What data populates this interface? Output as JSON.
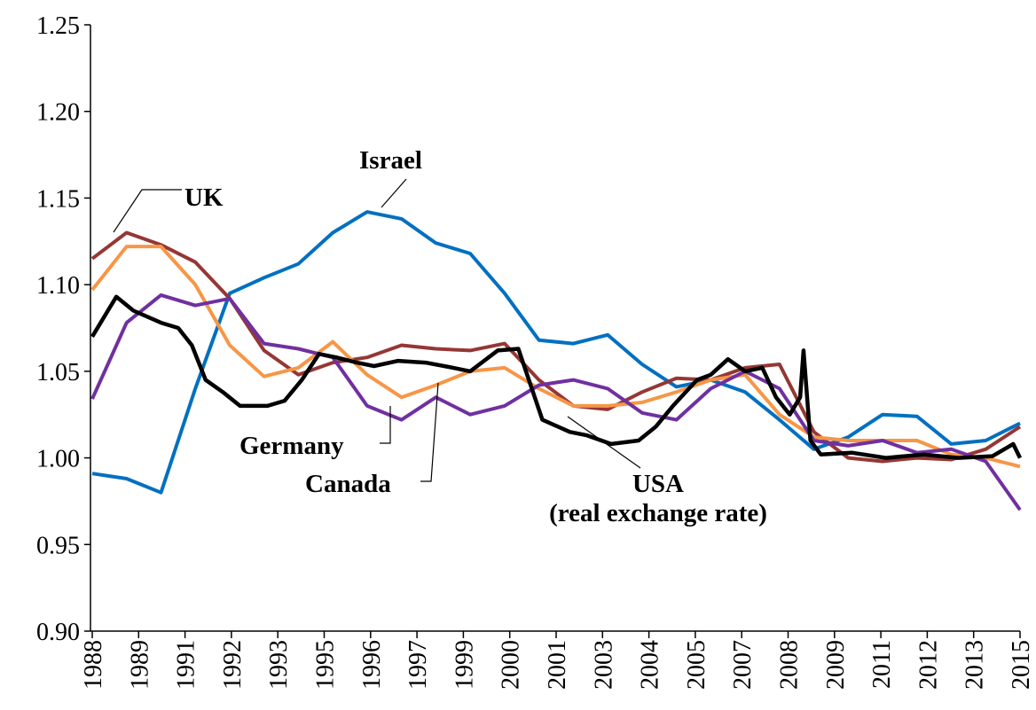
{
  "chart_data": {
    "type": "line",
    "annotations": [
      "Israel",
      "UK",
      "Germany",
      "Canada",
      "USA",
      "(real exchange rate)"
    ],
    "xlim": [
      1988,
      2015
    ],
    "xticks": [
      {
        "value": 1988,
        "label": "1988"
      },
      {
        "value": 1989.35,
        "label": "1989"
      },
      {
        "value": 1990.7,
        "label": "1991"
      },
      {
        "value": 1992.05,
        "label": "1992"
      },
      {
        "value": 1993.4,
        "label": "1993"
      },
      {
        "value": 1994.75,
        "label": "1995"
      },
      {
        "value": 1996.1,
        "label": "1996"
      },
      {
        "value": 1997.45,
        "label": "1997"
      },
      {
        "value": 1998.8,
        "label": "1999"
      },
      {
        "value": 2000.15,
        "label": "2000"
      },
      {
        "value": 2001.5,
        "label": "2001"
      },
      {
        "value": 2002.85,
        "label": "2003"
      },
      {
        "value": 2004.2,
        "label": "2004"
      },
      {
        "value": 2005.55,
        "label": "2005"
      },
      {
        "value": 2006.9,
        "label": "2007"
      },
      {
        "value": 2008.25,
        "label": "2008"
      },
      {
        "value": 2009.6,
        "label": "2009"
      },
      {
        "value": 2010.95,
        "label": "2011"
      },
      {
        "value": 2012.3,
        "label": "2012"
      },
      {
        "value": 2013.65,
        "label": "2013"
      },
      {
        "value": 2015,
        "label": "2015"
      }
    ],
    "ylim": [
      0.9,
      1.25
    ],
    "yticks": [
      {
        "value": 0.9,
        "label": "0.90"
      },
      {
        "value": 0.95,
        "label": "0.95"
      },
      {
        "value": 1.0,
        "label": "1.00"
      },
      {
        "value": 1.05,
        "label": "1.05"
      },
      {
        "value": 1.1,
        "label": "1.10"
      },
      {
        "value": 1.15,
        "label": "1.15"
      },
      {
        "value": 1.2,
        "label": "1.20"
      },
      {
        "value": 1.25,
        "label": "1.25"
      }
    ],
    "grid": false,
    "series": [
      {
        "name": "Israel",
        "color": "#0070c0",
        "x": [
          1988,
          1989,
          1990,
          1991,
          1992,
          1993,
          1994,
          1995,
          1996,
          1997,
          1998,
          1999,
          2000,
          2001,
          2002,
          2003,
          2004,
          2005,
          2006,
          2007,
          2008,
          2009,
          2010,
          2011,
          2012,
          2013,
          2014,
          2015
        ],
        "values": [
          0.991,
          0.988,
          0.98,
          1.04,
          1.095,
          1.104,
          1.112,
          1.13,
          1.142,
          1.138,
          1.124,
          1.118,
          1.095,
          1.068,
          1.066,
          1.071,
          1.054,
          1.041,
          1.045,
          1.038,
          1.022,
          1.005,
          1.012,
          1.025,
          1.024,
          1.008,
          1.01,
          1.02
        ]
      },
      {
        "name": "UK",
        "color": "#953735",
        "x": [
          1988,
          1989,
          1990,
          1991,
          1992,
          1993,
          1994,
          1995,
          1996,
          1997,
          1998,
          1999,
          2000,
          2001,
          2002,
          2003,
          2004,
          2005,
          2006,
          2007,
          2008,
          2009,
          2010,
          2011,
          2012,
          2013,
          2014,
          2015
        ],
        "values": [
          1.115,
          1.13,
          1.123,
          1.113,
          1.092,
          1.062,
          1.048,
          1.055,
          1.058,
          1.065,
          1.063,
          1.062,
          1.066,
          1.045,
          1.03,
          1.028,
          1.038,
          1.046,
          1.045,
          1.052,
          1.054,
          1.015,
          1.0,
          0.998,
          1.0,
          0.999,
          1.005,
          1.018
        ]
      },
      {
        "name": "Germany",
        "color": "#f79646",
        "x": [
          1988,
          1989,
          1990,
          1991,
          1992,
          1993,
          1994,
          1995,
          1996,
          1997,
          1998,
          1999,
          2000,
          2001,
          2002,
          2003,
          2004,
          2005,
          2006,
          2007,
          2008,
          2009,
          2010,
          2011,
          2012,
          2013,
          2014,
          2015
        ],
        "values": [
          1.097,
          1.122,
          1.122,
          1.1,
          1.065,
          1.047,
          1.052,
          1.067,
          1.048,
          1.035,
          1.042,
          1.05,
          1.052,
          1.04,
          1.03,
          1.03,
          1.032,
          1.038,
          1.045,
          1.048,
          1.025,
          1.012,
          1.01,
          1.01,
          1.01,
          1.002,
          1.0,
          0.995
        ]
      },
      {
        "name": "Canada",
        "color": "#7030a0",
        "x": [
          1988,
          1989,
          1990,
          1991,
          1992,
          1993,
          1994,
          1995,
          1996,
          1997,
          1998,
          1999,
          2000,
          2001,
          2002,
          2003,
          2004,
          2005,
          2006,
          2007,
          2008,
          2009,
          2010,
          2011,
          2012,
          2013,
          2014,
          2015
        ],
        "values": [
          1.034,
          1.078,
          1.094,
          1.088,
          1.092,
          1.066,
          1.063,
          1.058,
          1.03,
          1.022,
          1.035,
          1.025,
          1.03,
          1.042,
          1.045,
          1.04,
          1.026,
          1.022,
          1.04,
          1.05,
          1.04,
          1.01,
          1.007,
          1.01,
          1.003,
          1.005,
          0.998,
          0.97
        ]
      },
      {
        "name": "USA",
        "color": "#000000",
        "x": [
          1988,
          1988.7,
          1989.2,
          1990,
          1990.5,
          1990.9,
          1991.3,
          1991.8,
          1992.3,
          1993.1,
          1993.6,
          1994.1,
          1994.6,
          1995.1,
          1995.7,
          1996.2,
          1996.9,
          1997.7,
          1998.5,
          1999,
          1999.8,
          2000.4,
          2001.1,
          2001.9,
          2002.4,
          2003.1,
          2003.9,
          2004.4,
          2004.9,
          2005.6,
          2006,
          2006.5,
          2007,
          2007.5,
          2007.9,
          2008.3,
          2008.6,
          2008.7,
          2008.9,
          2009.2,
          2010.1,
          2011.1,
          2012.2,
          2013.2,
          2014.2,
          2014.8,
          2015
        ],
        "values": [
          1.07,
          1.093,
          1.085,
          1.078,
          1.075,
          1.065,
          1.045,
          1.038,
          1.03,
          1.03,
          1.033,
          1.045,
          1.06,
          1.058,
          1.055,
          1.053,
          1.056,
          1.055,
          1.052,
          1.05,
          1.062,
          1.063,
          1.022,
          1.015,
          1.013,
          1.008,
          1.01,
          1.018,
          1.03,
          1.045,
          1.048,
          1.057,
          1.05,
          1.052,
          1.035,
          1.025,
          1.035,
          1.062,
          1.01,
          1.002,
          1.003,
          1.0,
          1.002,
          1.0,
          1.001,
          1.008,
          1.0
        ]
      }
    ]
  }
}
